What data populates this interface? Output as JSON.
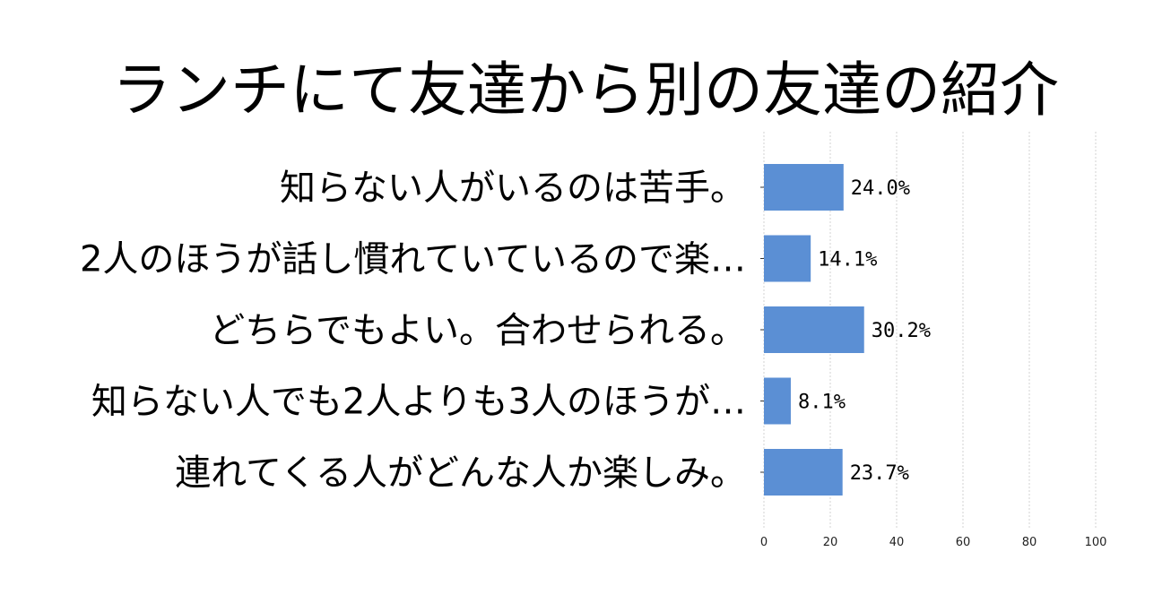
{
  "chart_data": {
    "type": "bar",
    "orientation": "horizontal",
    "title": "ランチにて友達から別の友達の紹介",
    "categories": [
      "知らない人がいるのは苦手。",
      "2人のほうが話し慣れていているので楽…",
      "どちらでもよい。合わせられる。",
      "知らない人でも2人よりも3人のほうが…",
      "連れてくる人がどんな人か楽しみ。"
    ],
    "values": [
      24.0,
      14.1,
      30.2,
      8.1,
      23.7
    ],
    "value_labels": [
      "24.0%",
      "14.1%",
      "30.2%",
      "8.1%",
      "23.7%"
    ],
    "xlim": [
      0,
      100
    ],
    "x_ticks": [
      0,
      20,
      40,
      60,
      80,
      100
    ],
    "x_tick_labels": [
      "0",
      "20",
      "40",
      "60",
      "80",
      "100"
    ],
    "grid": "vertical dashed",
    "bar_color": "#5b8fd4",
    "grid_color": "#c8c8c8"
  }
}
